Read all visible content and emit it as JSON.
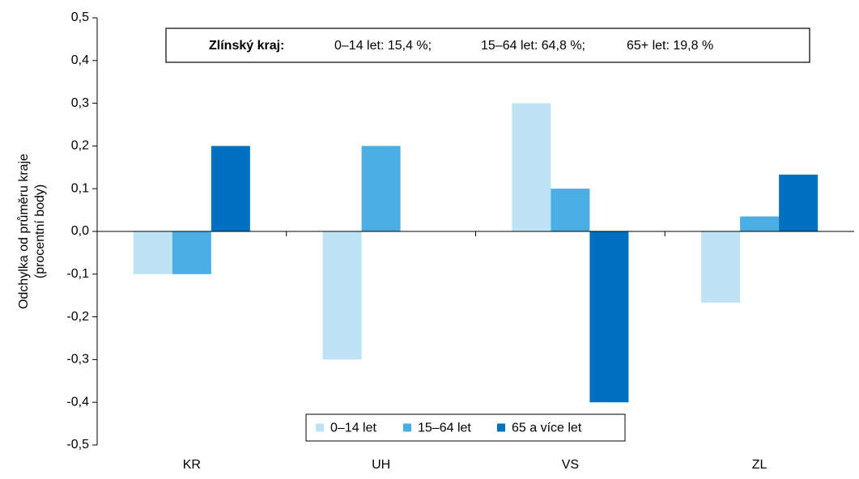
{
  "chart_data": {
    "type": "bar",
    "y_label": [
      "Odchylka od průměru kraje",
      "(procentní body)"
    ],
    "annotation": {
      "label": "Zlínský kraj:",
      "items": [
        "0–14 let: 15,4 %;",
        "15–64 let: 64,8 %;",
        "65+ let: 19,8 %"
      ]
    },
    "categories": [
      "KR",
      "UH",
      "VS",
      "ZL"
    ],
    "series": [
      {
        "name": "0–14 let",
        "color": "#bde3f5",
        "values": [
          -0.1,
          -0.3,
          0.3,
          -0.167
        ]
      },
      {
        "name": "15–64 let",
        "color": "#4aaee5",
        "values": [
          -0.1,
          0.2,
          0.1,
          0.035
        ]
      },
      {
        "name": "65 a více let",
        "color": "#0070c0",
        "values": [
          0.2,
          0.0,
          -0.4,
          0.133
        ]
      }
    ],
    "ylim": [
      -0.5,
      0.5
    ],
    "yticks": [
      {
        "value": -0.5,
        "label": "-0,5"
      },
      {
        "value": -0.4,
        "label": "-0,4"
      },
      {
        "value": -0.3,
        "label": "-0,3"
      },
      {
        "value": -0.2,
        "label": "-0,2"
      },
      {
        "value": -0.1,
        "label": "-0,1"
      },
      {
        "value": 0,
        "label": "0,0"
      },
      {
        "value": 0.1,
        "label": "0,1"
      },
      {
        "value": 0.2,
        "label": "0,2"
      },
      {
        "value": 0.3,
        "label": "0,3"
      },
      {
        "value": 0.4,
        "label": "0,4"
      },
      {
        "value": 0.5,
        "label": "0,5"
      }
    ],
    "grid": false,
    "legend": "bottom"
  }
}
